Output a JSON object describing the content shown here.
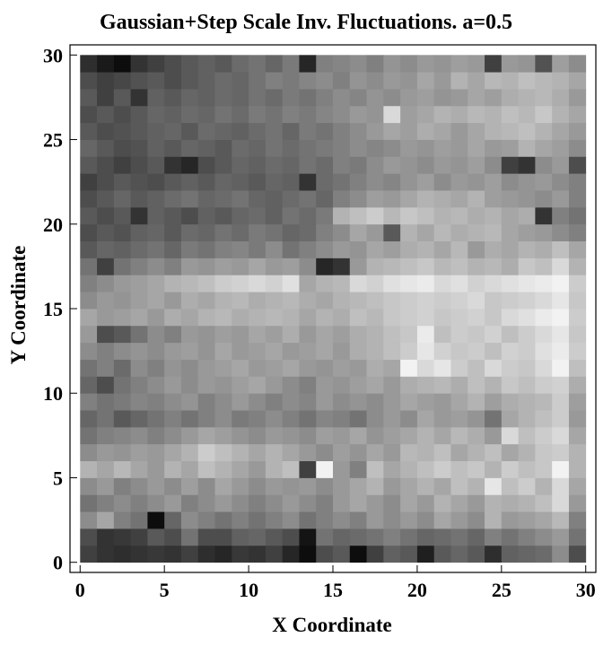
{
  "chart_data": {
    "type": "heatmap",
    "title": "Gaussian+Step Scale Inv. Fluctuations. a=0.5",
    "xlabel": "X Coordinate",
    "ylabel": "Y Coordinate",
    "xlim": [
      0,
      30
    ],
    "ylim": [
      0,
      30
    ],
    "x_ticks": [
      0,
      5,
      10,
      15,
      20,
      25,
      30
    ],
    "y_ticks": [
      0,
      5,
      10,
      15,
      20,
      25,
      30
    ],
    "grid": false,
    "colormap": "grayscale",
    "cols": 30,
    "rows": 30,
    "value_range": [
      0,
      1
    ],
    "z": [
      [
        0.25,
        0.2,
        0.18,
        0.2,
        0.22,
        0.2,
        0.25,
        0.18,
        0.15,
        0.22,
        0.2,
        0.25,
        0.15,
        0.05,
        0.3,
        0.35,
        0.05,
        0.25,
        0.38,
        0.35,
        0.12,
        0.35,
        0.4,
        0.35,
        0.18,
        0.38,
        0.4,
        0.42,
        0.55,
        0.3
      ],
      [
        0.3,
        0.2,
        0.22,
        0.25,
        0.35,
        0.3,
        0.45,
        0.3,
        0.3,
        0.38,
        0.4,
        0.35,
        0.3,
        0.08,
        0.45,
        0.4,
        0.42,
        0.45,
        0.5,
        0.45,
        0.4,
        0.42,
        0.45,
        0.4,
        0.5,
        0.45,
        0.5,
        0.55,
        0.6,
        0.45
      ],
      [
        0.55,
        0.65,
        0.5,
        0.45,
        0.05,
        0.4,
        0.55,
        0.5,
        0.45,
        0.5,
        0.45,
        0.5,
        0.55,
        0.45,
        0.5,
        0.55,
        0.5,
        0.6,
        0.55,
        0.6,
        0.55,
        0.65,
        0.6,
        0.55,
        0.7,
        0.6,
        0.62,
        0.65,
        0.72,
        0.5
      ],
      [
        0.45,
        0.5,
        0.55,
        0.5,
        0.55,
        0.6,
        0.5,
        0.55,
        0.6,
        0.55,
        0.5,
        0.55,
        0.6,
        0.55,
        0.5,
        0.6,
        0.65,
        0.6,
        0.55,
        0.65,
        0.6,
        0.7,
        0.65,
        0.6,
        0.7,
        0.68,
        0.7,
        0.75,
        0.85,
        0.6
      ],
      [
        0.55,
        0.6,
        0.5,
        0.55,
        0.6,
        0.55,
        0.62,
        0.55,
        0.65,
        0.6,
        0.55,
        0.6,
        0.58,
        0.6,
        0.55,
        0.6,
        0.65,
        0.7,
        0.6,
        0.65,
        0.7,
        0.65,
        0.75,
        0.7,
        0.9,
        0.75,
        0.8,
        0.7,
        0.85,
        0.65
      ],
      [
        0.7,
        0.65,
        0.72,
        0.65,
        0.6,
        0.7,
        0.65,
        0.75,
        0.7,
        0.65,
        0.6,
        0.7,
        0.75,
        0.25,
        0.95,
        0.6,
        0.5,
        0.75,
        0.65,
        0.7,
        0.75,
        0.8,
        0.75,
        0.78,
        0.7,
        0.8,
        0.75,
        0.78,
        0.95,
        0.7
      ],
      [
        0.55,
        0.6,
        0.58,
        0.62,
        0.6,
        0.65,
        0.7,
        0.8,
        0.75,
        0.7,
        0.65,
        0.7,
        0.65,
        0.6,
        0.55,
        0.62,
        0.58,
        0.65,
        0.6,
        0.72,
        0.7,
        0.75,
        0.65,
        0.7,
        0.75,
        0.65,
        0.7,
        0.78,
        0.8,
        0.7
      ],
      [
        0.45,
        0.5,
        0.52,
        0.55,
        0.5,
        0.55,
        0.6,
        0.65,
        0.62,
        0.58,
        0.55,
        0.6,
        0.58,
        0.55,
        0.62,
        0.6,
        0.65,
        0.58,
        0.62,
        0.65,
        0.7,
        0.65,
        0.72,
        0.68,
        0.6,
        0.85,
        0.75,
        0.8,
        0.85,
        0.65
      ],
      [
        0.4,
        0.45,
        0.35,
        0.4,
        0.45,
        0.5,
        0.45,
        0.5,
        0.55,
        0.48,
        0.5,
        0.55,
        0.5,
        0.45,
        0.52,
        0.5,
        0.45,
        0.55,
        0.6,
        0.55,
        0.65,
        0.6,
        0.62,
        0.58,
        0.45,
        0.65,
        0.7,
        0.75,
        0.8,
        0.6
      ],
      [
        0.5,
        0.45,
        0.48,
        0.52,
        0.5,
        0.55,
        0.58,
        0.5,
        0.55,
        0.6,
        0.55,
        0.5,
        0.55,
        0.52,
        0.6,
        0.55,
        0.58,
        0.55,
        0.6,
        0.65,
        0.62,
        0.6,
        0.65,
        0.7,
        0.62,
        0.68,
        0.7,
        0.72,
        0.8,
        0.62
      ],
      [
        0.4,
        0.3,
        0.45,
        0.5,
        0.55,
        0.6,
        0.55,
        0.6,
        0.58,
        0.62,
        0.65,
        0.6,
        0.55,
        0.5,
        0.6,
        0.58,
        0.62,
        0.65,
        0.6,
        0.68,
        0.7,
        0.72,
        0.68,
        0.75,
        0.7,
        0.78,
        0.75,
        0.8,
        0.82,
        0.68
      ],
      [
        0.45,
        0.5,
        0.42,
        0.55,
        0.5,
        0.58,
        0.55,
        0.6,
        0.62,
        0.65,
        0.6,
        0.62,
        0.65,
        0.6,
        0.58,
        0.62,
        0.6,
        0.68,
        0.65,
        0.95,
        0.85,
        0.9,
        0.8,
        0.75,
        0.85,
        0.8,
        0.78,
        0.85,
        0.95,
        0.75
      ],
      [
        0.55,
        0.5,
        0.55,
        0.58,
        0.55,
        0.6,
        0.62,
        0.58,
        0.65,
        0.6,
        0.62,
        0.65,
        0.6,
        0.62,
        0.65,
        0.6,
        0.68,
        0.7,
        0.75,
        0.8,
        0.9,
        0.82,
        0.78,
        0.8,
        0.75,
        0.82,
        0.8,
        0.88,
        0.92,
        0.8
      ],
      [
        0.6,
        0.3,
        0.35,
        0.45,
        0.55,
        0.5,
        0.6,
        0.58,
        0.62,
        0.6,
        0.65,
        0.62,
        0.68,
        0.6,
        0.65,
        0.62,
        0.68,
        0.7,
        0.75,
        0.78,
        0.92,
        0.75,
        0.8,
        0.78,
        0.82,
        0.75,
        0.8,
        0.85,
        0.9,
        0.78
      ],
      [
        0.65,
        0.6,
        0.62,
        0.65,
        0.6,
        0.68,
        0.65,
        0.7,
        0.72,
        0.68,
        0.7,
        0.72,
        0.7,
        0.65,
        0.7,
        0.68,
        0.75,
        0.72,
        0.78,
        0.8,
        0.82,
        0.78,
        0.8,
        0.82,
        0.78,
        0.85,
        0.88,
        0.92,
        0.95,
        0.8
      ],
      [
        0.55,
        0.6,
        0.58,
        0.62,
        0.65,
        0.6,
        0.68,
        0.65,
        0.7,
        0.72,
        0.68,
        0.7,
        0.72,
        0.68,
        0.65,
        0.7,
        0.72,
        0.75,
        0.78,
        0.8,
        0.82,
        0.8,
        0.82,
        0.85,
        0.78,
        0.8,
        0.82,
        0.85,
        0.9,
        0.78
      ],
      [
        0.5,
        0.55,
        0.6,
        0.62,
        0.65,
        0.7,
        0.72,
        0.75,
        0.8,
        0.82,
        0.85,
        0.82,
        0.88,
        0.65,
        0.7,
        0.72,
        0.85,
        0.82,
        0.88,
        0.9,
        0.92,
        0.85,
        0.88,
        0.82,
        0.85,
        0.88,
        0.9,
        0.92,
        0.95,
        0.8
      ],
      [
        0.45,
        0.25,
        0.45,
        0.5,
        0.55,
        0.5,
        0.6,
        0.58,
        0.62,
        0.6,
        0.65,
        0.6,
        0.62,
        0.55,
        0.15,
        0.2,
        0.6,
        0.7,
        0.72,
        0.75,
        0.78,
        0.72,
        0.75,
        0.7,
        0.72,
        0.68,
        0.78,
        0.75,
        0.85,
        0.7
      ],
      [
        0.35,
        0.4,
        0.38,
        0.42,
        0.45,
        0.4,
        0.48,
        0.45,
        0.5,
        0.52,
        0.48,
        0.55,
        0.45,
        0.5,
        0.55,
        0.6,
        0.58,
        0.65,
        0.62,
        0.68,
        0.7,
        0.65,
        0.72,
        0.6,
        0.68,
        0.65,
        0.7,
        0.68,
        0.75,
        0.65
      ],
      [
        0.3,
        0.35,
        0.32,
        0.38,
        0.4,
        0.35,
        0.42,
        0.4,
        0.45,
        0.42,
        0.48,
        0.45,
        0.4,
        0.42,
        0.5,
        0.55,
        0.65,
        0.6,
        0.35,
        0.7,
        0.65,
        0.72,
        0.68,
        0.7,
        0.72,
        0.65,
        0.62,
        0.6,
        0.55,
        0.5
      ],
      [
        0.35,
        0.3,
        0.35,
        0.2,
        0.38,
        0.35,
        0.3,
        0.38,
        0.35,
        0.4,
        0.42,
        0.38,
        0.45,
        0.42,
        0.48,
        0.7,
        0.75,
        0.8,
        0.72,
        0.78,
        0.75,
        0.7,
        0.72,
        0.68,
        0.7,
        0.65,
        0.68,
        0.2,
        0.5,
        0.45
      ],
      [
        0.3,
        0.35,
        0.4,
        0.35,
        0.38,
        0.42,
        0.45,
        0.4,
        0.42,
        0.45,
        0.4,
        0.38,
        0.42,
        0.45,
        0.4,
        0.5,
        0.55,
        0.62,
        0.6,
        0.65,
        0.7,
        0.68,
        0.65,
        0.7,
        0.62,
        0.6,
        0.58,
        0.55,
        0.6,
        0.5
      ],
      [
        0.25,
        0.3,
        0.35,
        0.32,
        0.3,
        0.35,
        0.38,
        0.35,
        0.4,
        0.38,
        0.35,
        0.4,
        0.38,
        0.2,
        0.42,
        0.45,
        0.5,
        0.55,
        0.52,
        0.58,
        0.62,
        0.55,
        0.6,
        0.58,
        0.62,
        0.55,
        0.58,
        0.6,
        0.55,
        0.5
      ],
      [
        0.35,
        0.3,
        0.25,
        0.3,
        0.35,
        0.2,
        0.15,
        0.3,
        0.35,
        0.4,
        0.38,
        0.42,
        0.4,
        0.45,
        0.42,
        0.5,
        0.48,
        0.55,
        0.6,
        0.58,
        0.55,
        0.6,
        0.58,
        0.62,
        0.55,
        0.25,
        0.2,
        0.55,
        0.6,
        0.3
      ],
      [
        0.4,
        0.35,
        0.3,
        0.32,
        0.38,
        0.35,
        0.4,
        0.38,
        0.35,
        0.42,
        0.4,
        0.45,
        0.42,
        0.45,
        0.48,
        0.5,
        0.55,
        0.52,
        0.55,
        0.6,
        0.58,
        0.62,
        0.6,
        0.65,
        0.6,
        0.62,
        0.7,
        0.65,
        0.62,
        0.55
      ],
      [
        0.35,
        0.3,
        0.32,
        0.35,
        0.38,
        0.4,
        0.35,
        0.42,
        0.4,
        0.38,
        0.42,
        0.45,
        0.4,
        0.48,
        0.45,
        0.5,
        0.55,
        0.6,
        0.65,
        0.62,
        0.68,
        0.65,
        0.6,
        0.65,
        0.7,
        0.72,
        0.75,
        0.7,
        0.65,
        0.6
      ],
      [
        0.3,
        0.35,
        0.3,
        0.35,
        0.4,
        0.38,
        0.42,
        0.4,
        0.45,
        0.42,
        0.48,
        0.45,
        0.5,
        0.48,
        0.52,
        0.55,
        0.6,
        0.58,
        0.85,
        0.62,
        0.65,
        0.7,
        0.68,
        0.72,
        0.7,
        0.75,
        0.72,
        0.78,
        0.7,
        0.65
      ],
      [
        0.35,
        0.25,
        0.35,
        0.2,
        0.38,
        0.35,
        0.4,
        0.38,
        0.42,
        0.4,
        0.45,
        0.42,
        0.48,
        0.45,
        0.5,
        0.55,
        0.52,
        0.58,
        0.55,
        0.6,
        0.62,
        0.58,
        0.6,
        0.65,
        0.62,
        0.68,
        0.7,
        0.72,
        0.68,
        0.6
      ],
      [
        0.3,
        0.25,
        0.28,
        0.32,
        0.35,
        0.3,
        0.35,
        0.38,
        0.42,
        0.4,
        0.45,
        0.5,
        0.48,
        0.52,
        0.55,
        0.5,
        0.58,
        0.55,
        0.6,
        0.58,
        0.65,
        0.6,
        0.7,
        0.65,
        0.72,
        0.7,
        0.75,
        0.72,
        0.7,
        0.65
      ],
      [
        0.18,
        0.1,
        0.05,
        0.2,
        0.25,
        0.3,
        0.35,
        0.38,
        0.35,
        0.42,
        0.45,
        0.4,
        0.48,
        0.15,
        0.5,
        0.52,
        0.55,
        0.5,
        0.58,
        0.55,
        0.6,
        0.58,
        0.62,
        0.6,
        0.25,
        0.6,
        0.58,
        0.32,
        0.62,
        0.55
      ]
    ]
  }
}
